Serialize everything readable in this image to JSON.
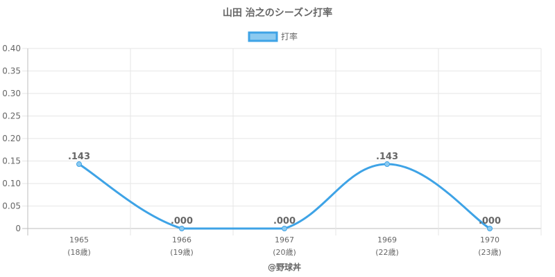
{
  "chart_data": {
    "type": "line",
    "title": "山田 治之のシーズン打率",
    "legend": {
      "label": "打率",
      "position": "top"
    },
    "categories": [
      "1965",
      "1966",
      "1967",
      "1969",
      "1970"
    ],
    "category_sublabels": [
      "(18歳)",
      "(19歳)",
      "(20歳)",
      "(22歳)",
      "(23歳)"
    ],
    "series": [
      {
        "name": "打率",
        "values": [
          0.143,
          0,
          0,
          0.143,
          0
        ],
        "data_labels": [
          ".143",
          ".000",
          ".000",
          ".143",
          ".000"
        ],
        "color": "#3ea3e6",
        "fill": "#8ccaf0"
      }
    ],
    "yticks": [
      "0.40",
      "0.35",
      "0.30",
      "0.25",
      "0.20",
      "0.15",
      "0.10",
      "0.05",
      "0"
    ],
    "ylim": [
      0,
      0.4
    ],
    "grid": true
  },
  "footer": "@野球丼"
}
